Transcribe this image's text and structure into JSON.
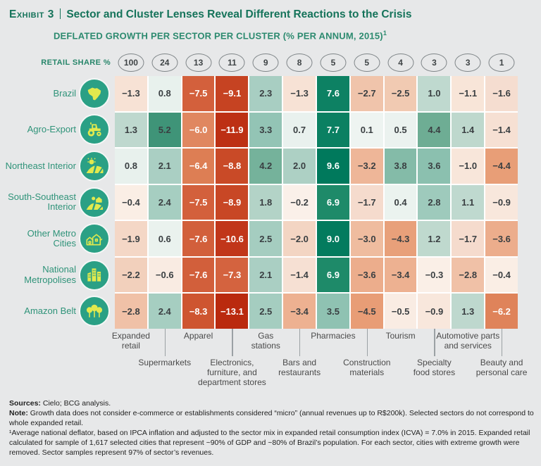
{
  "header": {
    "exhibit_label": "Exhibit 3",
    "title": "Sector and Cluster Lenses Reveal Different Reactions to the Crisis",
    "subtitle": "DEFLATED GROWTH PER SECTOR PER CLUSTER (% PER ANNUM, 2015)",
    "subtitle_footnote_marker": "1"
  },
  "retail_share": {
    "label": "RETAIL SHARE %",
    "values": [
      100,
      24,
      13,
      11,
      9,
      8,
      5,
      5,
      4,
      3,
      3,
      1
    ]
  },
  "chart_data": {
    "type": "heatmap",
    "title": "DEFLATED GROWTH PER SECTOR PER CLUSTER (% PER ANNUM, 2015)",
    "value_unit": "% per annum, deflated growth, 2015",
    "columns": [
      "Expanded retail",
      "Supermarkets",
      "Apparel",
      "Electronics, furniture, and department stores",
      "Gas stations",
      "Bars and restaurants",
      "Pharmacies",
      "Construction materials",
      "Tourism",
      "Specialty food stores",
      "Automotive parts and services",
      "Beauty and personal care"
    ],
    "retail_share_pct": [
      100,
      24,
      13,
      11,
      9,
      8,
      5,
      5,
      4,
      3,
      3,
      1
    ],
    "rows": [
      {
        "label": "Brazil",
        "icon": "brazil-map-icon",
        "values": [
          -1.3,
          0.8,
          -7.5,
          -9.1,
          2.3,
          -1.3,
          7.6,
          -2.7,
          -2.5,
          1.0,
          -1.1,
          -1.6
        ]
      },
      {
        "label": "Agro-Export",
        "icon": "tractor-icon",
        "values": [
          1.3,
          5.2,
          -6.0,
          -11.9,
          3.3,
          0.7,
          7.7,
          0.1,
          0.5,
          4.4,
          1.4,
          -1.4
        ]
      },
      {
        "label": "Northeast Interior",
        "icon": "sun-field-icon",
        "values": [
          0.8,
          2.1,
          -6.4,
          -8.8,
          4.2,
          2.0,
          9.6,
          -3.2,
          3.8,
          3.6,
          -1.0,
          -4.4
        ]
      },
      {
        "label": "South-Southeast Interior",
        "icon": "farm-house-icon",
        "values": [
          -0.4,
          2.4,
          -7.5,
          -8.9,
          1.8,
          -0.2,
          6.9,
          -1.7,
          0.4,
          2.8,
          1.1,
          -0.9
        ]
      },
      {
        "label": "Other Metro Cities",
        "icon": "town-icon",
        "values": [
          -1.9,
          0.6,
          -7.6,
          -10.6,
          2.5,
          -2.0,
          9.0,
          -3.0,
          -4.3,
          1.2,
          -1.7,
          -3.6
        ]
      },
      {
        "label": "National Metropolises",
        "icon": "skyscraper-icon",
        "values": [
          -2.2,
          -0.6,
          -7.6,
          -7.3,
          2.1,
          -1.4,
          6.9,
          -3.6,
          -3.4,
          -0.3,
          -2.8,
          -0.4
        ]
      },
      {
        "label": "Amazon Belt",
        "icon": "trees-icon",
        "values": [
          -2.8,
          2.4,
          -8.3,
          -13.1,
          2.5,
          -3.4,
          3.5,
          -4.5,
          -0.5,
          -0.9,
          1.3,
          -6.2
        ]
      }
    ],
    "footer_column_lines": [
      [
        "Expanded",
        "retail"
      ],
      [
        "Supermarkets"
      ],
      [
        "Apparel"
      ],
      [
        "Electronics,",
        "furniture, and",
        "department stores"
      ],
      [
        "Gas",
        "stations"
      ],
      [
        "Bars and",
        "restaurants"
      ],
      [
        "Pharmacies"
      ],
      [
        "Construction",
        "materials"
      ],
      [
        "Tourism"
      ],
      [
        "Specialty",
        "food stores"
      ],
      [
        "Automotive parts",
        "and services"
      ],
      [
        "Beauty and",
        "personal care"
      ]
    ],
    "color_scale": {
      "anchors": [
        [
          -13.1,
          "#ba2a0e"
        ],
        [
          -10.6,
          "#c1361a"
        ],
        [
          -9.1,
          "#c64322"
        ],
        [
          -8.3,
          "#ce5530"
        ],
        [
          -7.3,
          "#d4633f"
        ],
        [
          -6.4,
          "#dd7e54"
        ],
        [
          -6.0,
          "#e08760"
        ],
        [
          -4.4,
          "#e89e77"
        ],
        [
          -3.3,
          "#edb394"
        ],
        [
          -2.5,
          "#f1cab2"
        ],
        [
          -1.6,
          "#f5ddd0"
        ],
        [
          -1.0,
          "#f8e6da"
        ],
        [
          -0.2,
          "#faf0e9"
        ],
        [
          0.1,
          "#eef4f1"
        ],
        [
          0.8,
          "#e8f1ed"
        ],
        [
          1.0,
          "#bfd9cf"
        ],
        [
          1.4,
          "#bed8cd"
        ],
        [
          2.1,
          "#aacfc3"
        ],
        [
          2.5,
          "#a5cdc0"
        ],
        [
          3.5,
          "#8fc2b2"
        ],
        [
          4.4,
          "#6ead94"
        ],
        [
          5.2,
          "#3f9478"
        ],
        [
          6.9,
          "#1e8a69"
        ],
        [
          7.7,
          "#0b8062"
        ],
        [
          9.6,
          "#00795c"
        ]
      ],
      "negative_color": "#c63c1e",
      "positive_color": "#00795c"
    },
    "text_rule": {
      "white_abs_threshold": 6,
      "dark": "#3a3f42",
      "light": "#ffffff"
    },
    "legend_position": "none",
    "grid": "white 2px gaps between cells"
  },
  "icons": {
    "circle_background": "#2aa085",
    "glyph_color": "#e1e94e"
  },
  "footnotes": {
    "sources_label": "Sources:",
    "sources_text": " Cielo; BCG analysis.",
    "note_label": "Note:",
    "note_text": " Growth data does not consider e-commerce or establishments considered “micro” (annual revenues up to R$200k). Selected sectors do not correspond to whole expanded retail.",
    "footnote1": "¹Average national deflator, based on IPCA inflation and adjusted to the sector mix in expanded retail consumption index (ICVA) = 7.0% in 2015. Expanded retail calculated for sample of 1,617 selected cities that represent ~90% of GDP and ~80% of Brazil’s population. For each sector, cities with extreme growth were removed. Sector samples represent 97% of sector’s revenues."
  }
}
